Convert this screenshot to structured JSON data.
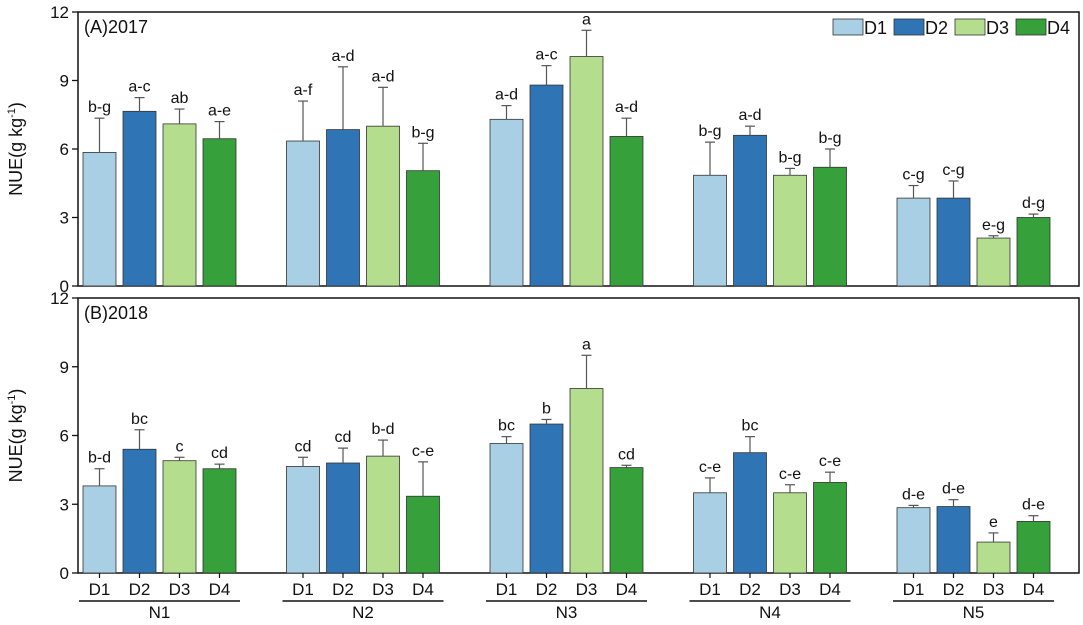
{
  "chart_data": {
    "type": "bar",
    "ylabel": "NUE(g kg-1)",
    "ylabel_parts": {
      "main": "NUE(g kg",
      "sup": "-1",
      "close": ")"
    },
    "ylim": [
      0,
      12
    ],
    "yticks": [
      0,
      3,
      6,
      9,
      12
    ],
    "groups": [
      "N1",
      "N2",
      "N3",
      "N4",
      "N5"
    ],
    "categories": [
      "D1",
      "D2",
      "D3",
      "D4"
    ],
    "legend": {
      "position": "top-right",
      "entries": [
        {
          "name": "D1",
          "color": "#a9cfe4"
        },
        {
          "name": "D2",
          "color": "#2f74b5"
        },
        {
          "name": "D3",
          "color": "#b4de8e"
        },
        {
          "name": "D4",
          "color": "#36a13a"
        }
      ]
    },
    "panels": [
      {
        "label": "(A)2017",
        "values": [
          [
            5.85,
            7.65,
            7.1,
            6.45
          ],
          [
            6.35,
            6.85,
            7.0,
            5.05
          ],
          [
            7.3,
            8.8,
            10.05,
            6.55
          ],
          [
            4.85,
            6.6,
            4.85,
            5.2
          ],
          [
            3.85,
            3.85,
            2.1,
            3.0
          ]
        ],
        "errors": [
          [
            1.5,
            0.6,
            0.65,
            0.75
          ],
          [
            1.75,
            2.75,
            1.7,
            1.2
          ],
          [
            0.6,
            0.85,
            1.15,
            0.8
          ],
          [
            1.45,
            0.4,
            0.3,
            0.8
          ],
          [
            0.55,
            0.75,
            0.1,
            0.15
          ]
        ],
        "letters": [
          [
            "b-g",
            "a-c",
            "ab",
            "a-e"
          ],
          [
            "a-f",
            "a-d",
            "a-d",
            "b-g"
          ],
          [
            "a-d",
            "a-c",
            "a",
            "a-d"
          ],
          [
            "b-g",
            "a-d",
            "b-g",
            "b-g"
          ],
          [
            "c-g",
            "c-g",
            "e-g",
            "d-g"
          ]
        ]
      },
      {
        "label": "(B)2018",
        "values": [
          [
            3.8,
            5.4,
            4.9,
            4.55
          ],
          [
            4.65,
            4.8,
            5.1,
            3.35
          ],
          [
            5.65,
            6.5,
            8.05,
            4.6
          ],
          [
            3.5,
            5.25,
            3.5,
            3.95
          ],
          [
            2.85,
            2.9,
            1.35,
            2.25
          ]
        ],
        "errors": [
          [
            0.75,
            0.85,
            0.15,
            0.2
          ],
          [
            0.4,
            0.65,
            0.7,
            1.5
          ],
          [
            0.3,
            0.2,
            1.45,
            0.1
          ],
          [
            0.65,
            0.7,
            0.35,
            0.45
          ],
          [
            0.1,
            0.3,
            0.4,
            0.25
          ]
        ],
        "letters": [
          [
            "b-d",
            "bc",
            "c",
            "cd"
          ],
          [
            "cd",
            "cd",
            "b-d",
            "c-e"
          ],
          [
            "bc",
            "b",
            "a",
            "cd"
          ],
          [
            "c-e",
            "bc",
            "c-e",
            "c-e"
          ],
          [
            "d-e",
            "d-e",
            "e",
            "d-e"
          ]
        ]
      }
    ]
  }
}
